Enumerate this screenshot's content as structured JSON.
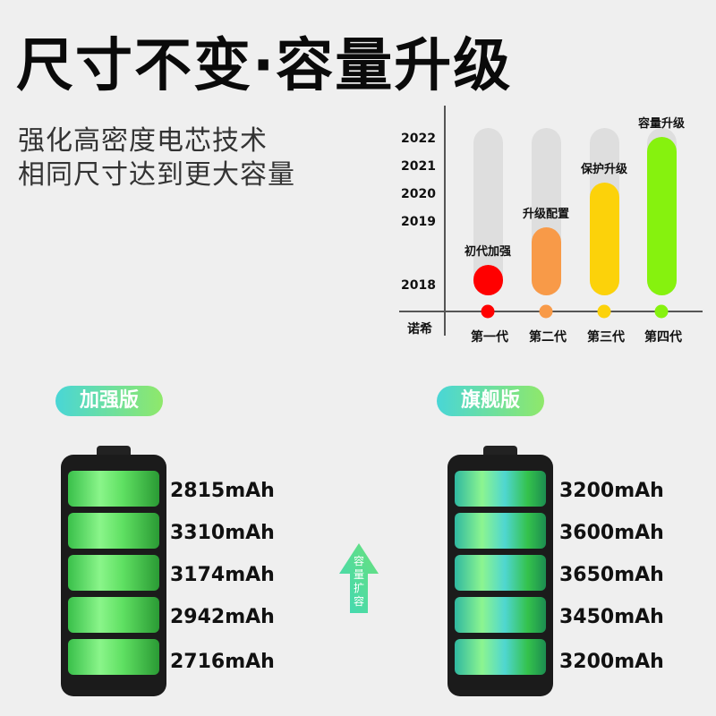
{
  "headline": "尺寸不变·容量升级",
  "subtitle_lines": [
    "强化高密度电芯技术",
    "相同尺寸达到更大容量"
  ],
  "timeline": {
    "years": [
      "2022",
      "2021",
      "2020",
      "2019",
      "2018"
    ],
    "brand": "诺希",
    "generations": [
      {
        "label": "第一代",
        "stage": "初代加强",
        "year": 2018,
        "color": "#ff0000"
      },
      {
        "label": "第二代",
        "stage": "升级配置",
        "year": 2019,
        "color": "#f89a48"
      },
      {
        "label": "第三代",
        "stage": "保护升级",
        "year": 2020,
        "color": "#fcd20a"
      },
      {
        "label": "第四代",
        "stage": "容量升级",
        "year": 2022,
        "color": "#86f20e"
      }
    ]
  },
  "left_battery": {
    "badge": "加强版",
    "capacities": [
      "2815mAh",
      "3310mAh",
      "3174mAh",
      "2942mAh",
      "2716mAh"
    ]
  },
  "right_battery": {
    "badge": "旗舰版",
    "capacities": [
      "3200mAh",
      "3600mAh",
      "3650mAh",
      "3450mAh",
      "3200mAh"
    ]
  },
  "arrow": {
    "text": "容量扩容",
    "color": "#3ed6a0"
  }
}
